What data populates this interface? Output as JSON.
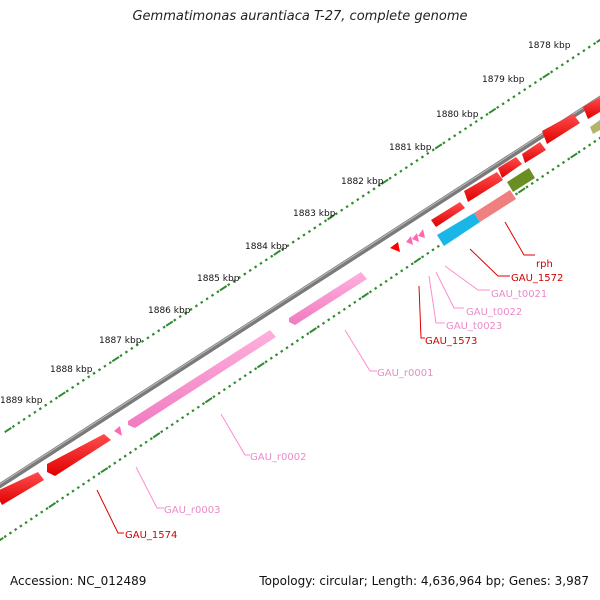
{
  "title": "Gemmatimonas aurantiaca T-27, complete genome",
  "footer": {
    "accession": "Accession: NC_012489",
    "summary": "Topology: circular; Length: 4,636,964 bp; Genes: 3,987"
  },
  "colors": {
    "backbone": "#7a7a7a",
    "tick": "#2e8b2e",
    "cds": "#ff0000",
    "trna": "#ff69b4",
    "rrna": "#ff8ccf",
    "rrna_label": "#e98bc8",
    "teal": "#1ab6e8",
    "salmon": "#f08080",
    "olive": "#6b8e23",
    "khaki": "#b5b56a"
  },
  "kbp_labels": [
    "1878 kbp",
    "1879 kbp",
    "1880 kbp",
    "1881 kbp",
    "1882 kbp",
    "1883 kbp",
    "1884 kbp",
    "1885 kbp",
    "1886 kbp",
    "1887 kbp",
    "1888 kbp",
    "1889 kbp"
  ],
  "feature_labels": [
    {
      "text": "rph",
      "type": "cds"
    },
    {
      "text": "GAU_1572",
      "type": "cds"
    },
    {
      "text": "GAU_t0021",
      "type": "trna"
    },
    {
      "text": "GAU_t0022",
      "type": "trna"
    },
    {
      "text": "GAU_t0023",
      "type": "trna"
    },
    {
      "text": "GAU_1573",
      "type": "cds"
    },
    {
      "text": "GAU_r0001",
      "type": "rrna"
    },
    {
      "text": "GAU_r0002",
      "type": "rrna"
    },
    {
      "text": "GAU_r0003",
      "type": "rrna"
    },
    {
      "text": "GAU_1574",
      "type": "cds"
    }
  ]
}
